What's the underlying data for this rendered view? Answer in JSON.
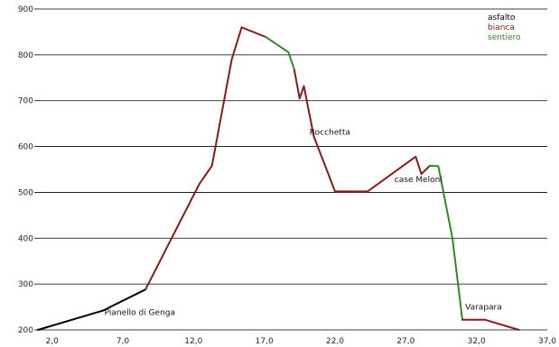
{
  "chart_data": {
    "type": "line",
    "xlim": [
      1.0,
      37.0
    ],
    "ylim": [
      200,
      900
    ],
    "x_ticks": [
      "2,0",
      "7,0",
      "12,0",
      "17,0",
      "22,0",
      "27,0",
      "32,0",
      "37,0"
    ],
    "y_ticks": [
      "200",
      "300",
      "400",
      "500",
      "600",
      "700",
      "800",
      "900"
    ],
    "grid": "horizontal",
    "legend_position": "top-right",
    "legend": [
      {
        "label": "asfalto",
        "color": "#000000"
      },
      {
        "label": "bianca",
        "color": "#8B1A1A"
      },
      {
        "label": "sentiero",
        "color": "#2E8B22"
      }
    ],
    "series": [
      {
        "name": "asfalto",
        "color": "#000000",
        "segments": [
          [
            [
              1.0,
              200
            ],
            [
              5.6,
              242
            ],
            [
              8.6,
              288
            ]
          ]
        ]
      },
      {
        "name": "bianca",
        "color": "#8B1A1A",
        "segments": [
          [
            [
              8.6,
              288
            ],
            [
              12.4,
              518
            ],
            [
              13.3,
              558
            ],
            [
              14.7,
              790
            ],
            [
              15.4,
              860
            ],
            [
              17.1,
              839
            ]
          ],
          [
            [
              19.1,
              770
            ],
            [
              19.5,
              705
            ],
            [
              19.8,
              732
            ],
            [
              20.5,
              622
            ],
            [
              22.0,
              502
            ],
            [
              24.3,
              502
            ],
            [
              27.7,
              578
            ],
            [
              28.1,
              540
            ],
            [
              28.7,
              558
            ]
          ]
        ]
      },
      {
        "name": "sentiero",
        "color": "#2E8B22",
        "segments": [
          [
            [
              17.1,
              839
            ],
            [
              18.7,
              806
            ],
            [
              19.1,
              770
            ]
          ],
          [
            [
              28.7,
              558
            ],
            [
              29.3,
              557
            ],
            [
              30.3,
              400
            ],
            [
              31.0,
              222
            ]
          ]
        ]
      },
      {
        "name": "asfalto",
        "color": "#8B1A1A",
        "segments": [
          [
            [
              31.0,
              222
            ],
            [
              32.6,
              222
            ],
            [
              35.0,
              200
            ]
          ]
        ]
      }
    ],
    "annotations": [
      {
        "text": "Pianello di Genga",
        "x": 5.7,
        "y": 232
      },
      {
        "text": "Rocchetta",
        "x": 20.2,
        "y": 626
      },
      {
        "text": "case Meloni",
        "x": 26.2,
        "y": 522
      },
      {
        "text": "Varapara",
        "x": 31.2,
        "y": 244
      }
    ]
  }
}
